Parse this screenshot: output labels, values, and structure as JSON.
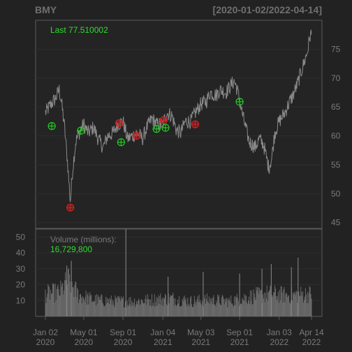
{
  "chart_data": {
    "type": "line",
    "symbol": "BMY",
    "date_range": "[2020-01-02/2022-04-14]",
    "last_label": "Last 77.510002",
    "volume_label": "Volume (millions):",
    "volume_last": "16,729,800",
    "price_axis": {
      "ticks": [
        45,
        50,
        55,
        60,
        65,
        70,
        75
      ],
      "range": [
        44,
        80
      ]
    },
    "volume_axis": {
      "ticks": [
        10,
        20,
        30,
        40,
        50
      ],
      "range": [
        0,
        55
      ]
    },
    "x_axis": {
      "range": [
        "2020-01-02",
        "2022-04-14"
      ],
      "ticks": [
        {
          "date": "2020-01-02",
          "label1": "Jan 02",
          "label2": "2020"
        },
        {
          "date": "2020-05-01",
          "label1": "May 01",
          "label2": "2020"
        },
        {
          "date": "2020-09-01",
          "label1": "Sep 01",
          "label2": "2020"
        },
        {
          "date": "2021-01-04",
          "label1": "Jan 04",
          "label2": "2021"
        },
        {
          "date": "2021-05-03",
          "label1": "May 03",
          "label2": "2021"
        },
        {
          "date": "2021-09-01",
          "label1": "Sep 01",
          "label2": "2021"
        },
        {
          "date": "2022-01-03",
          "label1": "Jan 03",
          "label2": "2022"
        },
        {
          "date": "2022-04-14",
          "label1": "Apr 14",
          "label2": "2022"
        }
      ]
    },
    "price_series": [
      [
        "2020-01-02",
        64.0
      ],
      [
        "2020-01-20",
        65.5
      ],
      [
        "2020-02-03",
        66.5
      ],
      [
        "2020-02-14",
        68.0
      ],
      [
        "2020-02-21",
        66.0
      ],
      [
        "2020-03-02",
        61.5
      ],
      [
        "2020-03-12",
        55.0
      ],
      [
        "2020-03-20",
        48.5
      ],
      [
        "2020-03-27",
        54.0
      ],
      [
        "2020-04-06",
        59.0
      ],
      [
        "2020-04-20",
        61.0
      ],
      [
        "2020-05-01",
        62.0
      ],
      [
        "2020-05-15",
        60.5
      ],
      [
        "2020-06-01",
        61.5
      ],
      [
        "2020-06-15",
        59.5
      ],
      [
        "2020-07-01",
        58.0
      ],
      [
        "2020-07-15",
        60.0
      ],
      [
        "2020-08-01",
        60.5
      ],
      [
        "2020-08-15",
        62.0
      ],
      [
        "2020-09-01",
        62.5
      ],
      [
        "2020-09-15",
        59.5
      ],
      [
        "2020-10-01",
        60.0
      ],
      [
        "2020-10-15",
        60.5
      ],
      [
        "2020-11-01",
        59.5
      ],
      [
        "2020-11-15",
        61.5
      ],
      [
        "2020-12-01",
        63.0
      ],
      [
        "2020-12-15",
        62.0
      ],
      [
        "2021-01-04",
        62.0
      ],
      [
        "2021-01-15",
        64.0
      ],
      [
        "2021-02-01",
        63.5
      ],
      [
        "2021-02-15",
        61.0
      ],
      [
        "2021-03-01",
        60.5
      ],
      [
        "2021-03-15",
        62.5
      ],
      [
        "2021-04-01",
        62.5
      ],
      [
        "2021-04-15",
        64.0
      ],
      [
        "2021-05-03",
        65.5
      ],
      [
        "2021-05-20",
        66.0
      ],
      [
        "2021-06-01",
        67.5
      ],
      [
        "2021-06-20",
        67.0
      ],
      [
        "2021-07-01",
        68.0
      ],
      [
        "2021-07-20",
        67.5
      ],
      [
        "2021-08-01",
        68.5
      ],
      [
        "2021-08-15",
        69.5
      ],
      [
        "2021-08-25",
        68.0
      ],
      [
        "2021-09-01",
        66.0
      ],
      [
        "2021-09-15",
        62.5
      ],
      [
        "2021-10-01",
        59.0
      ],
      [
        "2021-10-20",
        58.0
      ],
      [
        "2021-11-01",
        59.5
      ],
      [
        "2021-11-15",
        58.5
      ],
      [
        "2021-12-01",
        54.5
      ],
      [
        "2021-12-10",
        56.0
      ],
      [
        "2021-12-20",
        60.5
      ],
      [
        "2022-01-03",
        62.5
      ],
      [
        "2022-01-20",
        64.0
      ],
      [
        "2022-02-01",
        65.5
      ],
      [
        "2022-02-15",
        67.0
      ],
      [
        "2022-03-01",
        69.0
      ],
      [
        "2022-03-15",
        71.5
      ],
      [
        "2022-04-01",
        74.5
      ],
      [
        "2022-04-10",
        77.5
      ],
      [
        "2022-04-14",
        77.5
      ]
    ],
    "signals": [
      {
        "date": "2020-01-22",
        "price": 61.7,
        "type": "buy"
      },
      {
        "date": "2020-03-20",
        "price": 47.6,
        "type": "sell"
      },
      {
        "date": "2020-04-22",
        "price": 60.9,
        "type": "buy"
      },
      {
        "date": "2020-08-20",
        "price": 62.2,
        "type": "sell"
      },
      {
        "date": "2020-08-26",
        "price": 58.9,
        "type": "buy"
      },
      {
        "date": "2020-10-13",
        "price": 60.0,
        "type": "sell"
      },
      {
        "date": "2020-12-15",
        "price": 61.2,
        "type": "buy"
      },
      {
        "date": "2021-01-06",
        "price": 62.7,
        "type": "sell"
      },
      {
        "date": "2021-01-12",
        "price": 61.4,
        "type": "buy"
      },
      {
        "date": "2021-04-15",
        "price": 62.0,
        "type": "sell"
      },
      {
        "date": "2021-09-01",
        "price": 65.9,
        "type": "buy"
      }
    ],
    "volume_profile": [
      [
        "2020-01-02",
        15
      ],
      [
        "2020-02-15",
        16
      ],
      [
        "2020-03-15",
        24
      ],
      [
        "2020-04-15",
        14
      ],
      [
        "2020-06-01",
        11
      ],
      [
        "2020-08-01",
        10
      ],
      [
        "2020-10-01",
        10
      ],
      [
        "2020-12-01",
        11
      ],
      [
        "2021-02-01",
        12
      ],
      [
        "2021-04-01",
        10
      ],
      [
        "2021-06-01",
        11
      ],
      [
        "2021-08-01",
        10
      ],
      [
        "2021-10-01",
        13
      ],
      [
        "2021-12-01",
        15
      ],
      [
        "2022-02-01",
        14
      ],
      [
        "2022-04-14",
        15
      ]
    ],
    "volume_spikes": [
      [
        "2020-03-09",
        32
      ],
      [
        "2020-03-23",
        35
      ],
      [
        "2020-09-10",
        55
      ],
      [
        "2021-01-20",
        25
      ],
      [
        "2021-05-10",
        28
      ],
      [
        "2021-09-01",
        27
      ],
      [
        "2021-11-10",
        30
      ],
      [
        "2021-12-09",
        33
      ],
      [
        "2022-02-10",
        31
      ],
      [
        "2022-03-03",
        37
      ]
    ]
  }
}
